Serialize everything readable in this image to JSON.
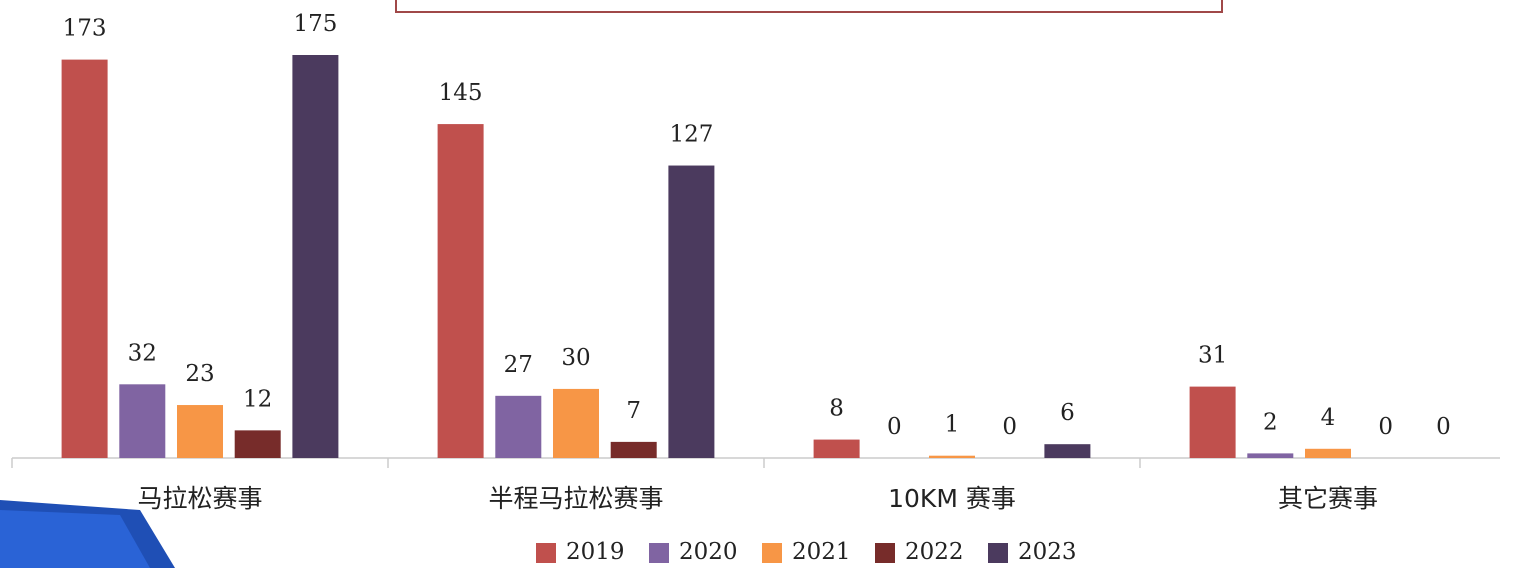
{
  "chart_data": {
    "type": "bar",
    "categories": [
      "马拉松赛事",
      "半程马拉松赛事",
      "10KM 赛事",
      "其它赛事"
    ],
    "series": [
      {
        "name": "2019",
        "color": "#c0504d",
        "values": [
          173,
          145,
          8,
          31
        ]
      },
      {
        "name": "2020",
        "color": "#8064a2",
        "values": [
          32,
          27,
          0,
          2
        ]
      },
      {
        "name": "2021",
        "color": "#f79646",
        "values": [
          23,
          30,
          1,
          4
        ]
      },
      {
        "name": "2022",
        "color": "#772c2a",
        "values": [
          12,
          7,
          0,
          0
        ]
      },
      {
        "name": "2023",
        "color": "#4b3a5e",
        "values": [
          175,
          127,
          6,
          0
        ]
      }
    ]
  }
}
